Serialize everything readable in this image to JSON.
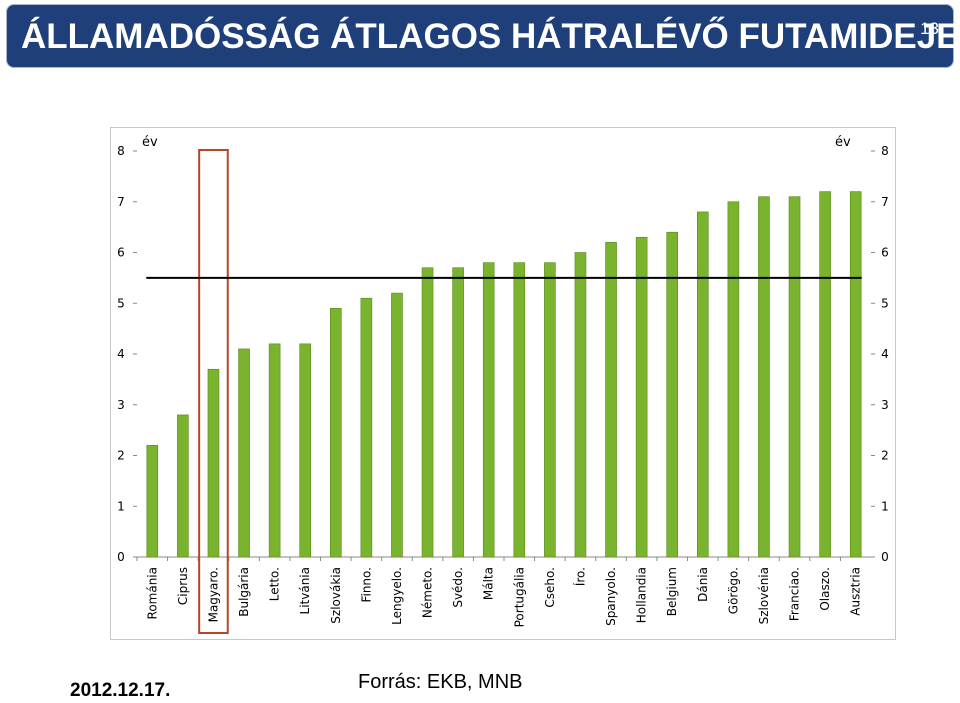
{
  "header": {
    "title": "ÁLLAMADÓSSÁG ÁTLAGOS HÁTRALÉVŐ FUTAMIDEJE",
    "slide_number": "13"
  },
  "footer": {
    "date": "2012.12.17.",
    "source": "Forrás: EKB, MNB"
  },
  "colors": {
    "title_bg": "#1f3f7a",
    "bar": "#7ab32e",
    "bar_edge": "#5a8a1c",
    "highlight_box": "#b5462c",
    "average_line": "#000000"
  },
  "chart_data": {
    "type": "bar",
    "categories": [
      "Románia",
      "Ciprus",
      "Magyaro.",
      "Bulgária",
      "Letto.",
      "Litvánia",
      "Szlovákia",
      "Finno.",
      "Lengyelo.",
      "Németo.",
      "Svédo.",
      "Málta",
      "Portugália",
      "Cseho.",
      "Íro.",
      "Spanyolo.",
      "Hollandia",
      "Belgium",
      "Dánia",
      "Görögo.",
      "Szlovénia",
      "Franciao.",
      "Olaszo.",
      "Ausztria"
    ],
    "values": [
      2.2,
      2.8,
      3.7,
      4.1,
      4.2,
      4.2,
      4.9,
      5.1,
      5.2,
      5.7,
      5.7,
      5.8,
      5.8,
      5.8,
      6.0,
      6.2,
      6.3,
      6.4,
      6.8,
      7.0,
      7.1,
      7.1,
      7.2,
      7.2
    ],
    "ylim": [
      0,
      8
    ],
    "yticks": [
      0,
      1,
      2,
      3,
      4,
      5,
      6,
      7,
      8
    ],
    "y_unit_left": "év",
    "y_unit_right": "év",
    "average_line": 5.5,
    "highlighted_category": "Magyaro.",
    "grid": false,
    "dual_y_axis": true
  }
}
